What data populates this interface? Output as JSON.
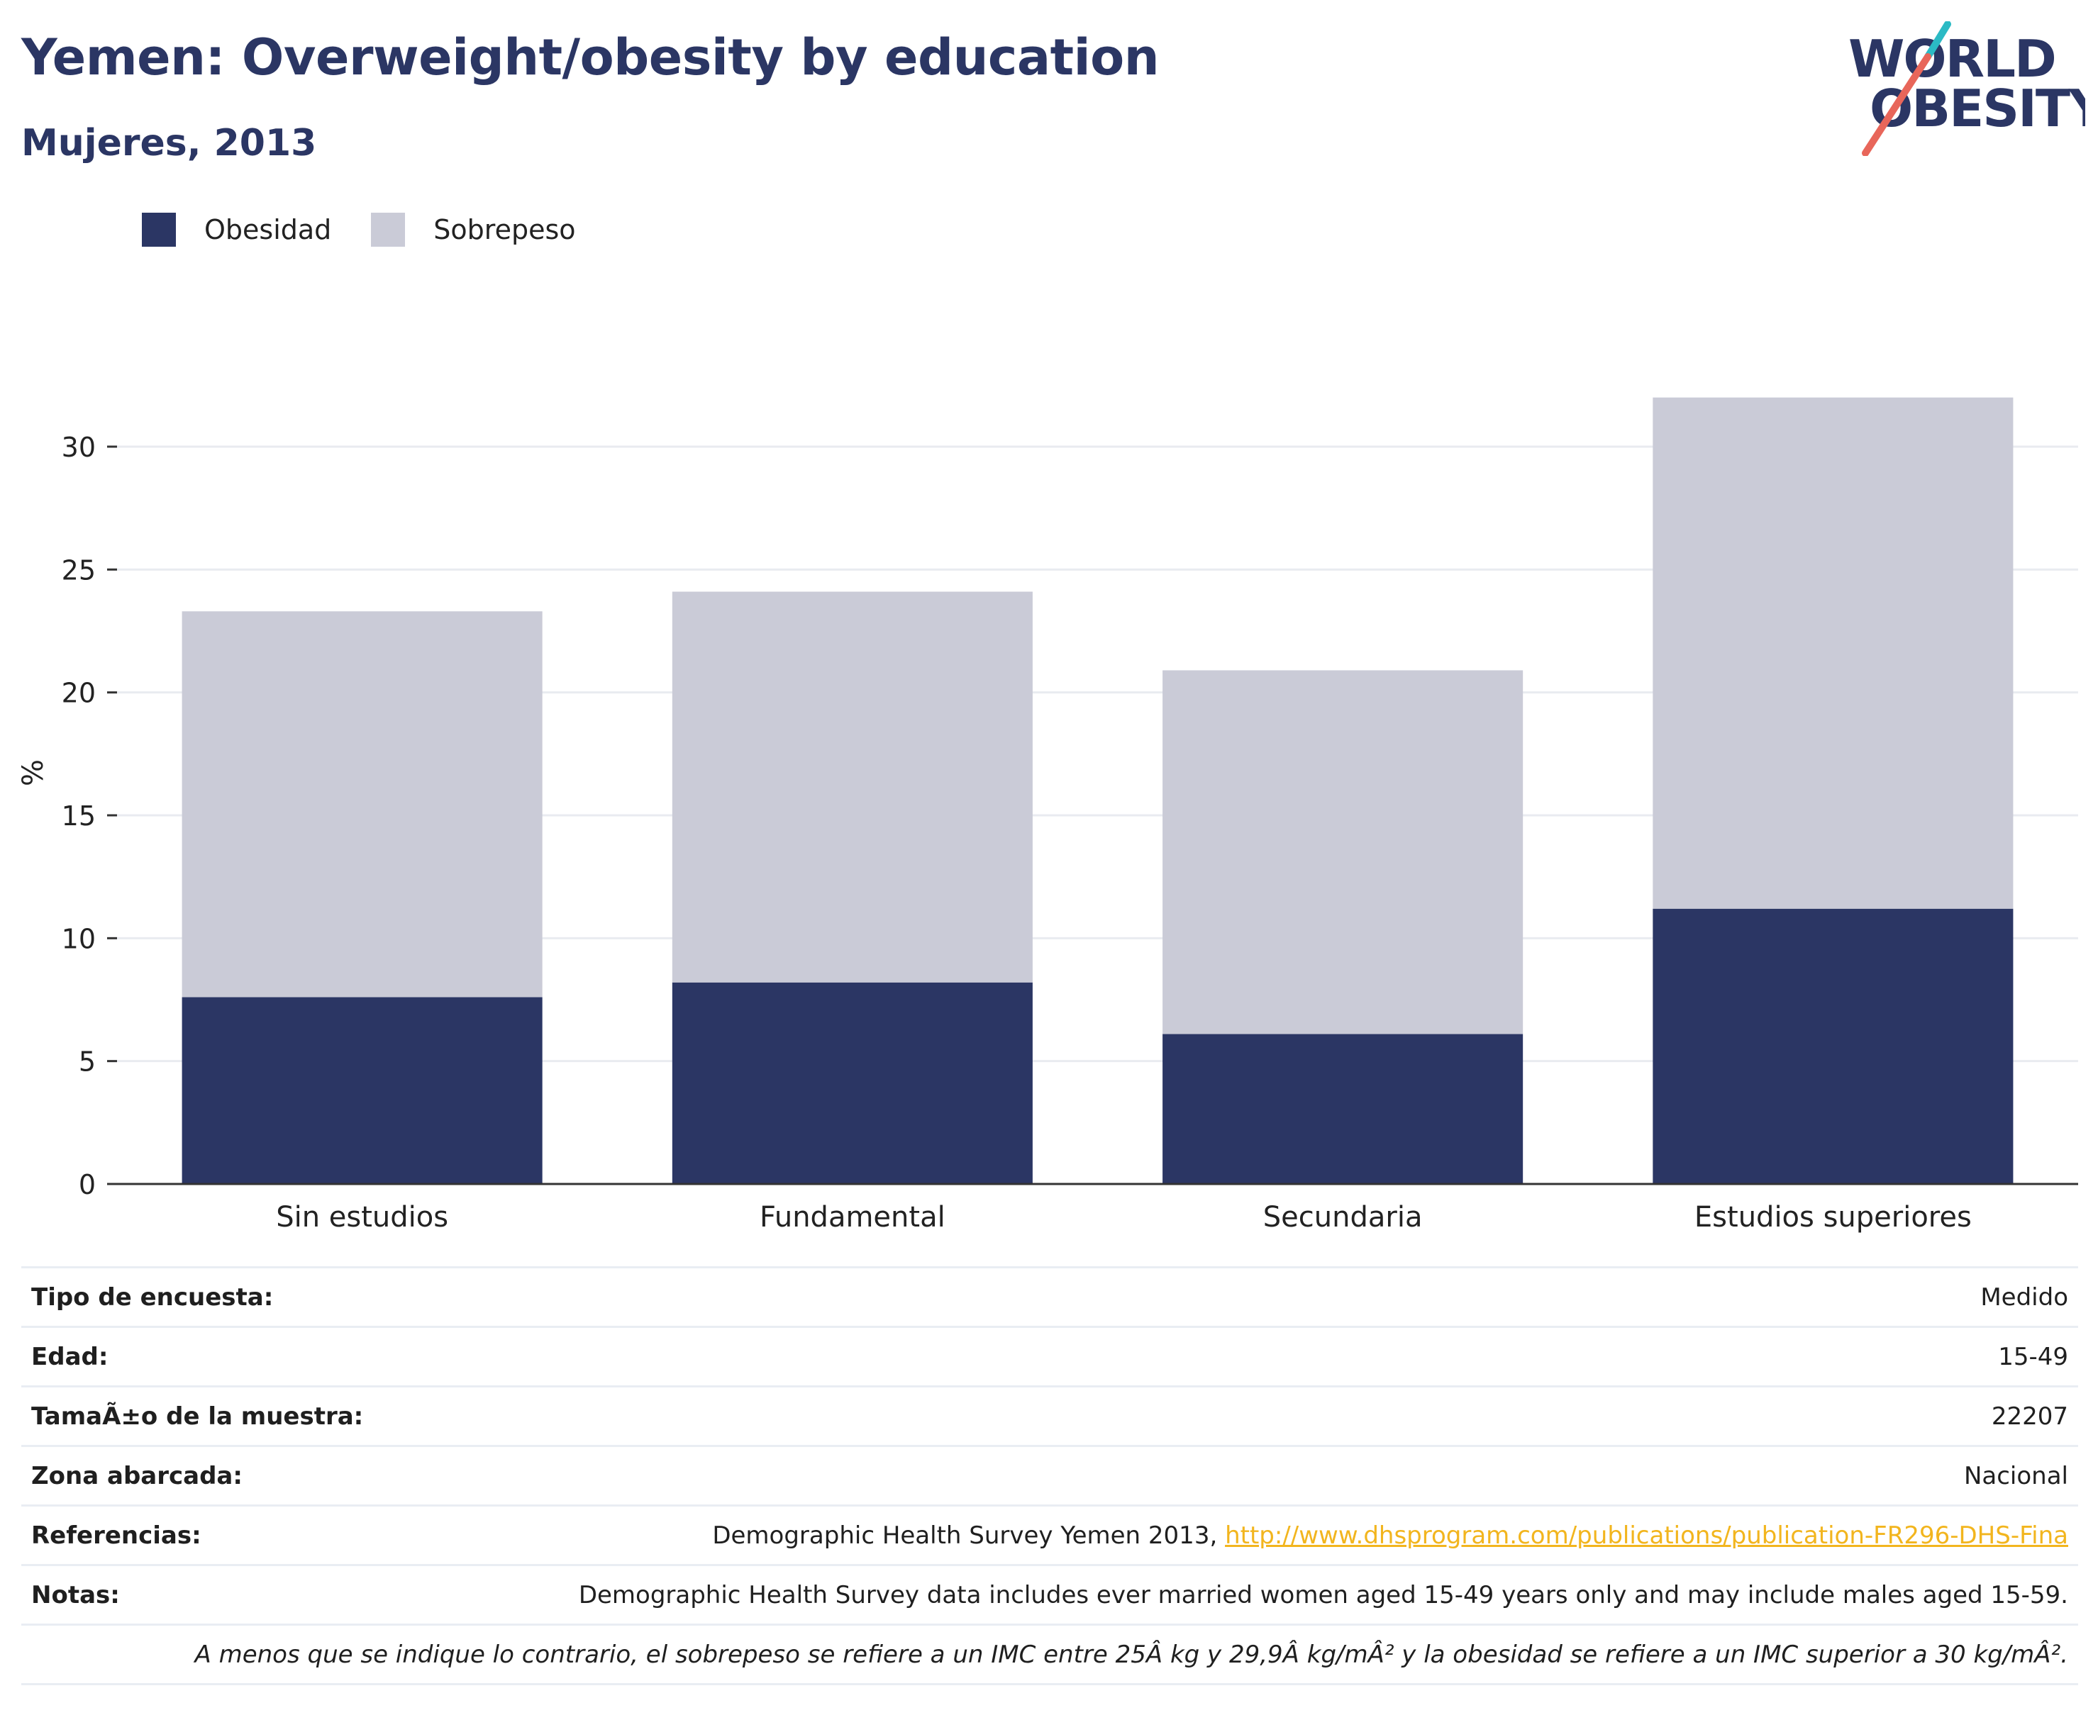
{
  "title": "Yemen: Overweight/obesity by education",
  "subtitle": "Mujeres, 2013",
  "logo": {
    "line1": "WORLD",
    "line2": "OBESITY",
    "colors": {
      "text": "#2b3664",
      "slash_red": "#e8665a",
      "slash_teal": "#2bbac4"
    }
  },
  "colors": {
    "obesity": "#2b3664",
    "overweight": "#cacbd7",
    "axis": "#333333",
    "grid": "#e9ebf0",
    "link": "#f2b51e"
  },
  "chart_data": {
    "type": "bar",
    "stacked": true,
    "categories": [
      "Sin estudios",
      "Fundamental",
      "Secundaria",
      "Estudios superiores"
    ],
    "series": [
      {
        "name": "Obesidad",
        "values": [
          7.6,
          8.2,
          6.1,
          11.2
        ],
        "color": "#2b3664"
      },
      {
        "name": "Sobrepeso",
        "values": [
          15.7,
          15.9,
          14.8,
          20.8
        ],
        "color": "#cacbd7"
      }
    ],
    "ylabel": "%",
    "ylim": [
      0,
      32
    ],
    "yticks": [
      0,
      5,
      10,
      15,
      20,
      25,
      30
    ],
    "grid": true,
    "legend_position": "top-left"
  },
  "info": [
    {
      "label": "Tipo de encuesta:",
      "value": "Medido"
    },
    {
      "label": "Edad:",
      "value": "15-49"
    },
    {
      "label": "TamaÃ±o de la muestra:",
      "value": "22207"
    },
    {
      "label": "Zona abarcada:",
      "value": "Nacional"
    },
    {
      "label": "Referencias:",
      "value": "Demographic Health Survey Yemen 2013, ",
      "link": "http://www.dhsprogram.com/publications/publication-FR296-DHS-Fina"
    },
    {
      "label": "Notas:",
      "value": "Demographic Health Survey data includes ever married women aged 15-49 years only and may include males aged 15-59."
    }
  ],
  "footnote": "A menos que se indique lo contrario, el sobrepeso se refiere a un IMC entre 25Â kg y 29,9Â kg/mÂ² y la obesidad se refiere a un IMC superior a 30 kg/mÂ²."
}
